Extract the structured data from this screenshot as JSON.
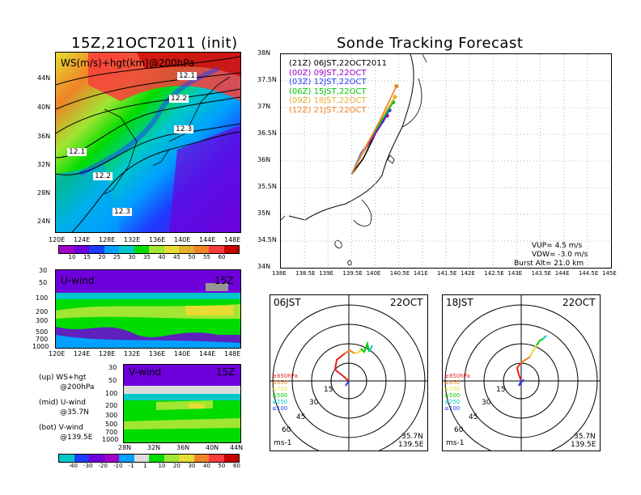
{
  "left_title": "15Z,21OCT2011 (init)",
  "right_title": "Sonde Tracking Forecast",
  "top_map": {
    "overlay_label": "WS(m/s)+hgt(km)@200hPa",
    "x_ticks": [
      "120E",
      "124E",
      "128E",
      "132E",
      "136E",
      "140E",
      "144E",
      "148E"
    ],
    "y_ticks": [
      "44N",
      "40N",
      "36N",
      "32N",
      "28N",
      "24N"
    ],
    "contour_labels": [
      "12.1",
      "12.2",
      "12.3",
      "12.1",
      "12.2",
      "12.3"
    ],
    "colorbar_values": [
      "10",
      "15",
      "20",
      "25",
      "30",
      "35",
      "40",
      "45",
      "50",
      "55",
      "60"
    ],
    "colorbar_colors": [
      "#a000c8",
      "#6e00dc",
      "#1e3cff",
      "#00a0ff",
      "#00c8c8",
      "#00dc00",
      "#a0e632",
      "#e6dc32",
      "#e6af2d",
      "#f08228",
      "#fa3c3c",
      "#c80000"
    ]
  },
  "u_panel": {
    "label": "U-wind",
    "time": "15Z",
    "y_ticks": [
      "30",
      "50",
      "100",
      "200",
      "300",
      "500",
      "700",
      "1000"
    ],
    "x_ticks": [
      "120E",
      "124E",
      "128E",
      "132E",
      "136E",
      "140E",
      "144E",
      "148E"
    ]
  },
  "v_panel": {
    "label": "V-wind",
    "time": "15Z",
    "y_ticks": [
      "30",
      "50",
      "100",
      "200",
      "300",
      "500",
      "700",
      "1000"
    ],
    "x_ticks": [
      "28N",
      "32N",
      "36N",
      "40N",
      "44N"
    ]
  },
  "legend_notes": [
    {
      "line1": "(up) WS+hgt",
      "line2": "@200hPa"
    },
    {
      "line1": "(mid) U-wind",
      "line2": "@35.7N"
    },
    {
      "line1": "(bot) V-wind",
      "line2": "@139.5E"
    }
  ],
  "bottom_colorbar": {
    "values": [
      "-40",
      "-30",
      "-20",
      "-10",
      "-1",
      "1",
      "10",
      "20",
      "30",
      "40",
      "50",
      "60"
    ],
    "colors": [
      "#00c8c8",
      "#1e3cff",
      "#6e00dc",
      "#a000c8",
      "#00a0ff",
      "#dcdcdc",
      "#00dc00",
      "#a0e632",
      "#e6dc32",
      "#f08228",
      "#fa3c3c",
      "#c80000"
    ]
  },
  "track_map": {
    "x_ticks": [
      "138E",
      "138.5E",
      "139E",
      "139.5E",
      "140E",
      "140.5E",
      "141E",
      "141.5E",
      "142E",
      "142.5E",
      "143E",
      "143.5E",
      "144E",
      "144.5E",
      "145E"
    ],
    "y_ticks": [
      "38N",
      "37.5N",
      "37N",
      "36.5N",
      "36N",
      "35.5N",
      "35N",
      "34.5N",
      "34N"
    ],
    "legend": [
      {
        "utc": "(21Z)",
        "jst": "06JST,22OCT2011",
        "color": "#000000"
      },
      {
        "utc": "(00Z)",
        "jst": "09JST,22OCT",
        "color": "#a000c8"
      },
      {
        "utc": "(03Z)",
        "jst": "12JST,22OCT",
        "color": "#1e3cff"
      },
      {
        "utc": "(06Z)",
        "jst": "15JST,22OCT",
        "color": "#00c800"
      },
      {
        "utc": "(09Z)",
        "jst": "18JST,22OCT",
        "color": "#e6af2d"
      },
      {
        "utc": "(12Z)",
        "jst": "21JST,22OCT",
        "color": "#f08228"
      }
    ],
    "vup": "VUP= 4.5 m/s",
    "vdw": "VDW= -3.0 m/s",
    "burst": "Burst Alt= 21.0 km"
  },
  "hodographs": [
    {
      "time_label": "06JST",
      "date_label": "22OCT"
    },
    {
      "time_label": "18JST",
      "date_label": "22OCT"
    }
  ],
  "hodo_common": {
    "levels": [
      {
        "label": "≥850hPa",
        "color": "#e61e1e"
      },
      {
        "label": "≤850",
        "color": "#f08228"
      },
      {
        "label": "≤700",
        "color": "#e6dc32"
      },
      {
        "label": "≤500",
        "color": "#00c800"
      },
      {
        "label": "≤250",
        "color": "#00c8c8"
      },
      {
        "label": "≤100",
        "color": "#1e3cff"
      }
    ],
    "rings": [
      "15",
      "30",
      "45",
      "60"
    ],
    "units": "ms-1",
    "lat": "35.7N",
    "lon": "139.5E"
  },
  "chart_data": [
    {
      "type": "heatmap",
      "title": "15Z,21OCT2011 (init)",
      "variable": "WS(m/s)+hgt(km)@200hPa",
      "x_range": [
        "120E",
        "148E"
      ],
      "y_range": [
        "24N",
        "44N"
      ],
      "contour_values_km": [
        12.1,
        12.2,
        12.3
      ],
      "colorbar_ms": [
        10,
        15,
        20,
        25,
        30,
        35,
        40,
        45,
        50,
        55,
        60
      ]
    },
    {
      "type": "heatmap",
      "title": "U-wind",
      "x_range": [
        "120E",
        "148E"
      ],
      "pressure_levels_hpa": [
        30,
        50,
        100,
        200,
        300,
        500,
        700,
        1000
      ]
    },
    {
      "type": "heatmap",
      "title": "V-wind",
      "x_range": [
        "28N",
        "44N"
      ],
      "pressure_levels_hpa": [
        30,
        50,
        100,
        200,
        300,
        500,
        700,
        1000
      ],
      "colorbar_ms": [
        -40,
        -30,
        -20,
        -10,
        -1,
        1,
        10,
        20,
        30,
        40,
        50,
        60
      ]
    },
    {
      "type": "line",
      "title": "Sonde Tracking Forecast",
      "xlim": [
        138,
        145
      ],
      "ylim": [
        34,
        38
      ],
      "series": [
        {
          "name": "06JST,22OCT2011",
          "x": [
            139.5,
            139.75,
            140.0,
            140.15
          ],
          "y": [
            35.75,
            36.05,
            36.5,
            36.75
          ]
        },
        {
          "name": "09JST,22OCT",
          "x": [
            139.5,
            139.7,
            140.0,
            140.25
          ],
          "y": [
            35.75,
            36.1,
            36.5,
            36.85
          ]
        },
        {
          "name": "12JST,22OCT",
          "x": [
            139.5,
            139.7,
            140.05,
            140.3
          ],
          "y": [
            35.75,
            36.15,
            36.6,
            36.95
          ]
        },
        {
          "name": "15JST,22OCT",
          "x": [
            139.5,
            139.75,
            140.1,
            140.38
          ],
          "y": [
            35.75,
            36.2,
            36.7,
            37.1
          ]
        },
        {
          "name": "18JST,22OCT",
          "x": [
            139.5,
            139.75,
            140.1,
            140.42
          ],
          "y": [
            35.75,
            36.2,
            36.75,
            37.2
          ]
        },
        {
          "name": "21JST,22OCT",
          "x": [
            139.5,
            139.8,
            140.15,
            140.45
          ],
          "y": [
            35.75,
            36.25,
            36.85,
            37.4
          ]
        }
      ]
    }
  ]
}
